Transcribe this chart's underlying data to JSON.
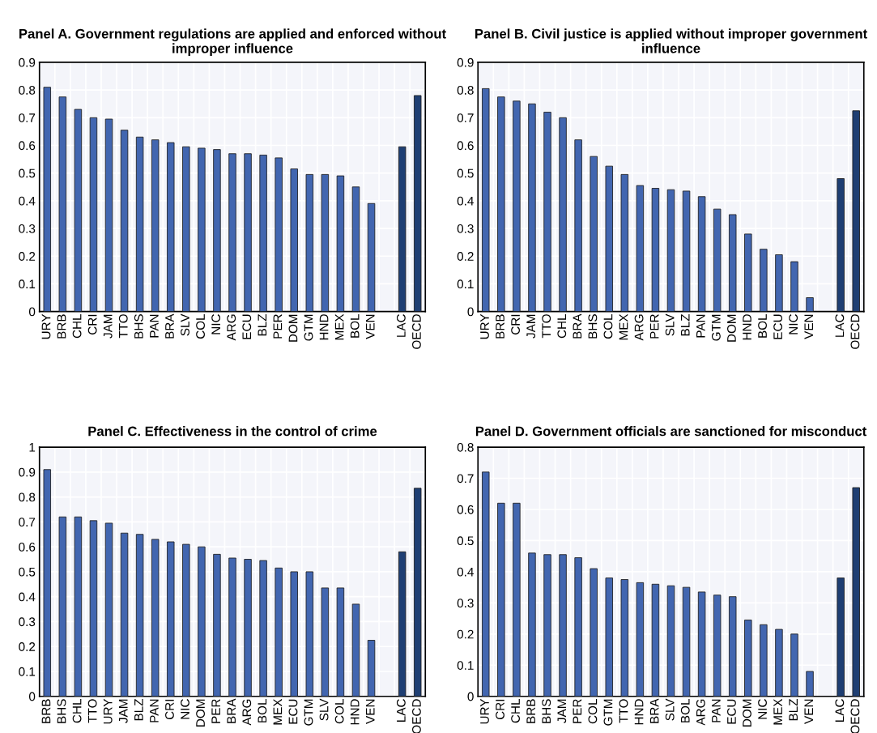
{
  "chart_data": [
    {
      "type": "bar",
      "title": "Panel A. Government regulations are applied and enforced without improper influence",
      "categories": [
        "URY",
        "BRB",
        "CHL",
        "CRI",
        "JAM",
        "TTO",
        "BHS",
        "PAN",
        "BRA",
        "SLV",
        "COL",
        "NIC",
        "ARG",
        "ECU",
        "BLZ",
        "PER",
        "DOM",
        "GTM",
        "HND",
        "MEX",
        "BOL",
        "VEN",
        null,
        "LAC",
        "OECD"
      ],
      "values": [
        0.81,
        0.775,
        0.73,
        0.7,
        0.695,
        0.655,
        0.63,
        0.62,
        0.61,
        0.595,
        0.59,
        0.585,
        0.57,
        0.57,
        0.565,
        0.555,
        0.515,
        0.495,
        0.495,
        0.49,
        0.45,
        0.39,
        null,
        0.595,
        0.78
      ],
      "colors": [
        "#4266b0",
        "#4266b0",
        "#4266b0",
        "#4266b0",
        "#4266b0",
        "#4266b0",
        "#4266b0",
        "#4266b0",
        "#4266b0",
        "#4266b0",
        "#4266b0",
        "#4266b0",
        "#4266b0",
        "#4266b0",
        "#4266b0",
        "#4266b0",
        "#4266b0",
        "#4266b0",
        "#4266b0",
        "#4266b0",
        "#4266b0",
        "#4266b0",
        "#4266b0",
        "#1f3f73",
        "#1f3f73"
      ],
      "ylim": [
        0,
        0.9
      ],
      "yticks": [
        0,
        0.1,
        0.2,
        0.3,
        0.4,
        0.5,
        0.6,
        0.7,
        0.8,
        0.9
      ],
      "grid": true
    },
    {
      "type": "bar",
      "title": "Panel B. Civil justice is applied without improper government influence",
      "categories": [
        "URY",
        "BRB",
        "CRI",
        "JAM",
        "TTO",
        "CHL",
        "BRA",
        "BHS",
        "COL",
        "MEX",
        "ARG",
        "PER",
        "SLV",
        "BLZ",
        "PAN",
        "GTM",
        "DOM",
        "HND",
        "BOL",
        "ECU",
        "NIC",
        "VEN",
        null,
        "LAC",
        "OECD"
      ],
      "values": [
        0.805,
        0.775,
        0.76,
        0.75,
        0.72,
        0.7,
        0.62,
        0.56,
        0.525,
        0.495,
        0.455,
        0.445,
        0.44,
        0.435,
        0.415,
        0.37,
        0.35,
        0.28,
        0.225,
        0.205,
        0.18,
        0.05,
        null,
        0.48,
        0.725
      ],
      "colors": [
        "#4266b0",
        "#4266b0",
        "#4266b0",
        "#4266b0",
        "#4266b0",
        "#4266b0",
        "#4266b0",
        "#4266b0",
        "#4266b0",
        "#4266b0",
        "#4266b0",
        "#4266b0",
        "#4266b0",
        "#4266b0",
        "#4266b0",
        "#4266b0",
        "#4266b0",
        "#4266b0",
        "#4266b0",
        "#4266b0",
        "#4266b0",
        "#4266b0",
        "#4266b0",
        "#1f3f73",
        "#1f3f73"
      ],
      "ylim": [
        0,
        0.9
      ],
      "yticks": [
        0,
        0.1,
        0.2,
        0.3,
        0.4,
        0.5,
        0.6,
        0.7,
        0.8,
        0.9
      ],
      "grid": true
    },
    {
      "type": "bar",
      "title": "Panel C. Effectiveness in the control of crime",
      "categories": [
        "BRB",
        "BHS",
        "CHL",
        "TTO",
        "URY",
        "JAM",
        "BLZ",
        "PAN",
        "CRI",
        "NIC",
        "DOM",
        "PER",
        "BRA",
        "ARG",
        "BOL",
        "MEX",
        "ECU",
        "GTM",
        "SLV",
        "COL",
        "HND",
        "VEN",
        null,
        "LAC",
        "OECD"
      ],
      "values": [
        0.91,
        0.72,
        0.72,
        0.705,
        0.695,
        0.655,
        0.65,
        0.63,
        0.62,
        0.61,
        0.6,
        0.57,
        0.555,
        0.55,
        0.545,
        0.515,
        0.5,
        0.5,
        0.435,
        0.435,
        0.37,
        0.225,
        null,
        0.58,
        0.835
      ],
      "colors": [
        "#4266b0",
        "#4266b0",
        "#4266b0",
        "#4266b0",
        "#4266b0",
        "#4266b0",
        "#4266b0",
        "#4266b0",
        "#4266b0",
        "#4266b0",
        "#4266b0",
        "#4266b0",
        "#4266b0",
        "#4266b0",
        "#4266b0",
        "#4266b0",
        "#4266b0",
        "#4266b0",
        "#4266b0",
        "#4266b0",
        "#4266b0",
        "#4266b0",
        "#4266b0",
        "#1f3f73",
        "#1f3f73"
      ],
      "ylim": [
        0,
        1
      ],
      "yticks": [
        0,
        0.1,
        0.2,
        0.3,
        0.4,
        0.5,
        0.6,
        0.7,
        0.8,
        0.9,
        1
      ],
      "grid": true
    },
    {
      "type": "bar",
      "title": "Panel D. Government officials are sanctioned for misconduct",
      "categories": [
        "URY",
        "CRI",
        "CHL",
        "BRB",
        "BHS",
        "JAM",
        "PER",
        "COL",
        "GTM",
        "TTO",
        "HND",
        "BRA",
        "SLV",
        "BOL",
        "ARG",
        "PAN",
        "ECU",
        "DOM",
        "NIC",
        "MEX",
        "BLZ",
        "VEN",
        null,
        "LAC",
        "OECD"
      ],
      "values": [
        0.72,
        0.62,
        0.62,
        0.46,
        0.455,
        0.455,
        0.445,
        0.41,
        0.38,
        0.375,
        0.365,
        0.36,
        0.355,
        0.35,
        0.335,
        0.325,
        0.32,
        0.245,
        0.23,
        0.215,
        0.2,
        0.08,
        null,
        0.38,
        0.67
      ],
      "colors": [
        "#4266b0",
        "#4266b0",
        "#4266b0",
        "#4266b0",
        "#4266b0",
        "#4266b0",
        "#4266b0",
        "#4266b0",
        "#4266b0",
        "#4266b0",
        "#4266b0",
        "#4266b0",
        "#4266b0",
        "#4266b0",
        "#4266b0",
        "#4266b0",
        "#4266b0",
        "#4266b0",
        "#4266b0",
        "#4266b0",
        "#4266b0",
        "#4266b0",
        "#4266b0",
        "#1f3f73",
        "#1f3f73"
      ],
      "ylim": [
        0,
        0.8
      ],
      "yticks": [
        0,
        0.1,
        0.2,
        0.3,
        0.4,
        0.5,
        0.6,
        0.7,
        0.8
      ],
      "grid": true
    }
  ]
}
